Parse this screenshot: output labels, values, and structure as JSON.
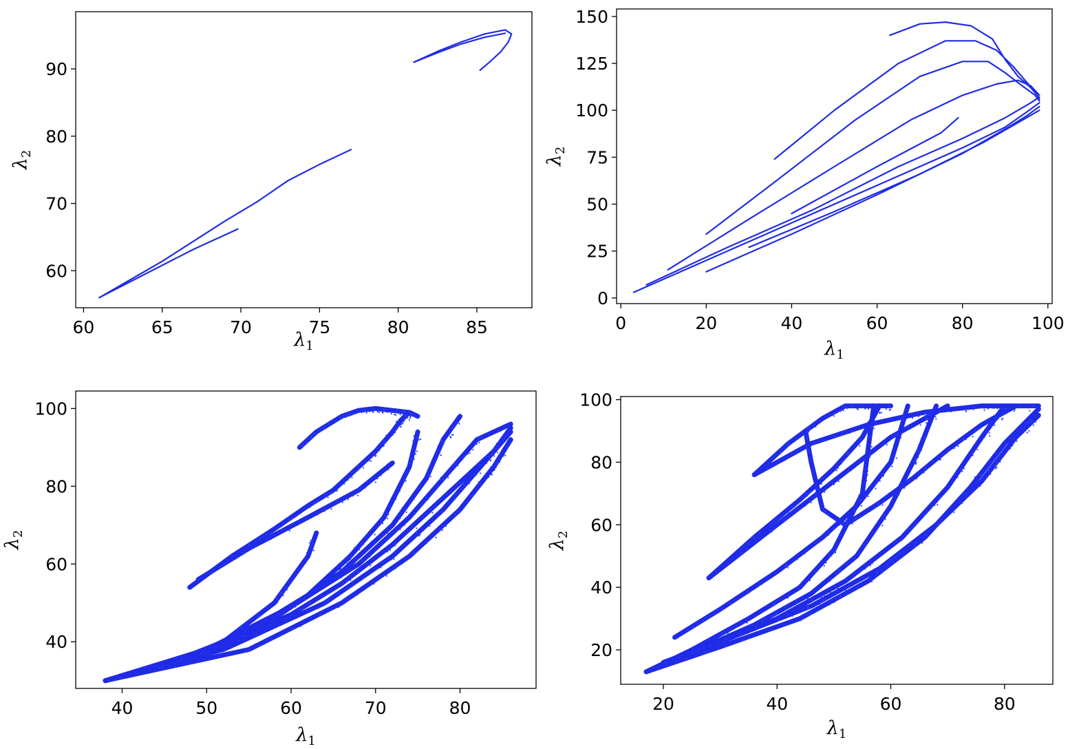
{
  "chart_data": [
    {
      "type": "line",
      "xlabel": "λ₁",
      "ylabel": "λ₂",
      "xlim": [
        59.5,
        88.5
      ],
      "ylim": [
        54.5,
        98.5
      ],
      "xticks": [
        60,
        65,
        70,
        75,
        80,
        85
      ],
      "yticks": [
        60,
        70,
        80,
        90
      ],
      "grid": false,
      "color": "#1f2be6",
      "series": [
        {
          "x": [
            61,
            63,
            65,
            67,
            69,
            71,
            73,
            75,
            77
          ],
          "y": [
            56,
            58.7,
            61.4,
            64.4,
            67.4,
            70.2,
            73.4,
            75.8,
            78
          ]
        },
        {
          "x": [
            61,
            63,
            65,
            67,
            69.8
          ],
          "y": [
            56,
            58.4,
            60.8,
            63.2,
            66.2
          ]
        },
        {
          "x": [
            81,
            82.5,
            84,
            85.5,
            86.8,
            87.2,
            87,
            86.5,
            85.8,
            85.2
          ],
          "y": [
            91,
            92.6,
            94,
            95.2,
            95.8,
            95.2,
            94,
            92.5,
            91,
            89.8
          ]
        },
        {
          "x": [
            81,
            82.5,
            84,
            85.5,
            86.8
          ],
          "y": [
            91,
            92.4,
            93.7,
            94.7,
            95.3
          ]
        }
      ]
    },
    {
      "type": "line",
      "xlabel": "λ₁",
      "ylabel": "λ₂",
      "xlim": [
        -1,
        101
      ],
      "ylim": [
        -3,
        154
      ],
      "xticks": [
        0,
        20,
        40,
        60,
        80,
        100
      ],
      "yticks": [
        0,
        25,
        50,
        75,
        100,
        125,
        150
      ],
      "grid": false,
      "color": "#1f2be6",
      "series": [
        {
          "x": [
            63,
            70,
            76,
            82,
            87,
            90,
            93,
            96,
            97.5
          ],
          "y": [
            140,
            146,
            147,
            145,
            138,
            127,
            118,
            112,
            108
          ]
        },
        {
          "x": [
            36,
            50,
            65,
            76,
            83,
            88,
            92,
            95,
            97,
            98
          ],
          "y": [
            74,
            100,
            125,
            137,
            137,
            132,
            123,
            115,
            110,
            106
          ]
        },
        {
          "x": [
            20,
            35,
            55,
            70,
            80,
            86,
            90,
            94,
            97,
            98
          ],
          "y": [
            34,
            60,
            95,
            118,
            126,
            126,
            120,
            113,
            108,
            105
          ]
        },
        {
          "x": [
            11,
            30,
            50,
            68,
            80,
            88,
            93,
            96,
            98
          ],
          "y": [
            15,
            42,
            70,
            95,
            108,
            114,
            116,
            113,
            108
          ]
        },
        {
          "x": [
            6,
            25,
            45,
            65,
            80,
            90,
            96,
            98
          ],
          "y": [
            7,
            27,
            47,
            70,
            85,
            96,
            104,
            107
          ]
        },
        {
          "x": [
            3,
            20,
            40,
            60,
            80,
            90,
            95,
            98
          ],
          "y": [
            3,
            20,
            40,
            60,
            80,
            91,
            99,
            104
          ]
        },
        {
          "x": [
            20,
            40,
            60,
            80,
            90,
            95,
            98
          ],
          "y": [
            14,
            34,
            55,
            77,
            90,
            97,
            102
          ]
        },
        {
          "x": [
            40,
            60,
            75,
            79
          ],
          "y": [
            45,
            70,
            88,
            96
          ]
        },
        {
          "x": [
            30,
            50,
            70,
            85,
            95,
            98
          ],
          "y": [
            27,
            46,
            66,
            83,
            96,
            100
          ]
        }
      ]
    },
    {
      "type": "scatter",
      "xlabel": "λ₁",
      "ylabel": "λ₂",
      "xlim": [
        34.5,
        89
      ],
      "ylim": [
        28,
        104.5
      ],
      "xticks": [
        40,
        50,
        60,
        70,
        80
      ],
      "yticks": [
        40,
        60,
        80,
        100
      ],
      "grid": false,
      "color": "#2b3cf0",
      "series": [
        {
          "x": [
            61,
            63,
            66,
            68,
            70,
            72,
            74,
            75
          ],
          "y": [
            90,
            94,
            98,
            99.5,
            100,
            99.5,
            99,
            98
          ]
        },
        {
          "x": [
            48,
            53,
            58,
            62,
            65,
            68,
            70,
            72,
            73,
            74
          ],
          "y": [
            54,
            62,
            69,
            75,
            79,
            85,
            89,
            94,
            97,
            99
          ]
        },
        {
          "x": [
            49,
            55,
            62,
            68,
            72
          ],
          "y": [
            56,
            64,
            72,
            79,
            86
          ]
        },
        {
          "x": [
            38,
            45,
            52,
            58,
            62,
            63
          ],
          "y": [
            30,
            34,
            40,
            50,
            62,
            68
          ]
        },
        {
          "x": [
            38,
            48,
            56,
            62,
            67,
            71,
            74,
            75
          ],
          "y": [
            30,
            36,
            44,
            52,
            62,
            72,
            85,
            94
          ]
        },
        {
          "x": [
            38,
            48,
            58,
            66,
            72,
            76,
            78,
            80
          ],
          "y": [
            30,
            36,
            46,
            58,
            70,
            82,
            92,
            98
          ]
        },
        {
          "x": [
            38,
            50,
            60,
            68,
            74,
            78,
            82,
            86
          ],
          "y": [
            30,
            38,
            49,
            60,
            72,
            82,
            92,
            96
          ]
        },
        {
          "x": [
            38,
            52,
            64,
            72,
            78,
            82,
            86
          ],
          "y": [
            30,
            38,
            50,
            62,
            74,
            84,
            94
          ]
        },
        {
          "x": [
            38,
            55,
            66,
            74,
            80,
            84,
            86
          ],
          "y": [
            30,
            38,
            50,
            62,
            74,
            85,
            92
          ]
        },
        {
          "x": [
            44,
            52,
            60,
            66,
            72,
            78,
            84,
            86
          ],
          "y": [
            33,
            39,
            47,
            55,
            65,
            77,
            89,
            95
          ]
        }
      ]
    },
    {
      "type": "scatter",
      "xlabel": "λ₁",
      "ylabel": "λ₂",
      "xlim": [
        12.5,
        88.5
      ],
      "ylim": [
        9,
        101
      ],
      "xticks": [
        20,
        40,
        60,
        80
      ],
      "yticks": [
        20,
        40,
        60,
        80,
        100
      ],
      "grid": false,
      "color": "#2b3cf0",
      "series": [
        {
          "x": [
            36,
            42,
            48,
            52,
            56,
            60
          ],
          "y": [
            76,
            86,
            94,
            98,
            98,
            98
          ]
        },
        {
          "x": [
            28,
            36,
            44,
            50,
            55,
            58
          ],
          "y": [
            43,
            56,
            68,
            78,
            88,
            98
          ]
        },
        {
          "x": [
            22,
            30,
            40,
            48,
            54,
            60,
            63
          ],
          "y": [
            24,
            33,
            45,
            56,
            66,
            80,
            98
          ]
        },
        {
          "x": [
            17,
            25,
            35,
            44,
            50,
            55,
            57
          ],
          "y": [
            13,
            20,
            30,
            40,
            52,
            70,
            98
          ]
        },
        {
          "x": [
            17,
            26,
            36,
            46,
            54,
            60,
            65,
            68
          ],
          "y": [
            13,
            20,
            28,
            38,
            50,
            66,
            84,
            98
          ]
        },
        {
          "x": [
            17,
            28,
            40,
            52,
            62,
            70,
            76,
            80
          ],
          "y": [
            13,
            21,
            30,
            42,
            56,
            72,
            88,
            98
          ]
        },
        {
          "x": [
            17,
            30,
            44,
            56,
            66,
            74,
            80,
            86
          ],
          "y": [
            13,
            21,
            30,
            42,
            56,
            72,
            86,
            97
          ]
        },
        {
          "x": [
            20,
            32,
            46,
            58,
            68,
            76,
            82,
            86
          ],
          "y": [
            16,
            24,
            34,
            46,
            60,
            74,
            88,
            95
          ]
        },
        {
          "x": [
            45,
            46,
            48,
            52,
            58,
            64,
            70,
            76,
            82
          ],
          "y": [
            90,
            80,
            65,
            60,
            67,
            75,
            84,
            92,
            98
          ]
        },
        {
          "x": [
            28,
            40,
            50,
            60,
            70
          ],
          "y": [
            43,
            60,
            74,
            88,
            98
          ]
        },
        {
          "x": [
            36,
            46,
            56,
            66,
            76,
            86
          ],
          "y": [
            76,
            86,
            92,
            96,
            98,
            98
          ]
        }
      ]
    }
  ]
}
